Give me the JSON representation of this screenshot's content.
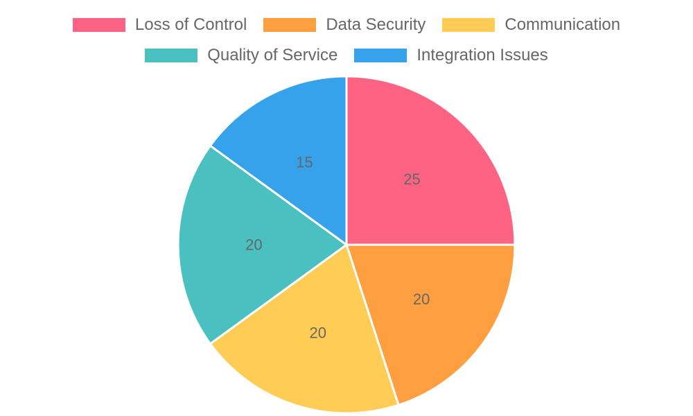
{
  "chart_data": {
    "type": "pie",
    "categories": [
      "Loss of Control",
      "Data Security",
      "Communication",
      "Quality of Service",
      "Integration Issues"
    ],
    "values": [
      25,
      20,
      20,
      20,
      15
    ],
    "colors": [
      "#ff6384",
      "#ff9f40",
      "#ffcd56",
      "#4bc0c0",
      "#36a2eb"
    ],
    "legend_position": "top",
    "start_angle_deg": -90,
    "direction": "clockwise",
    "slice_border_color": "#ffffff"
  }
}
